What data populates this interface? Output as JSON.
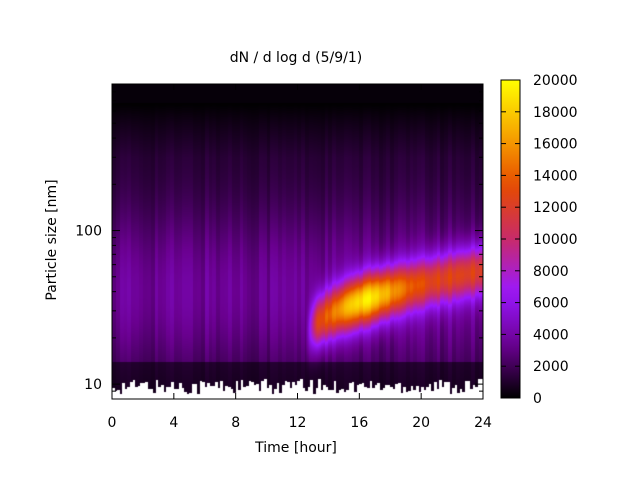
{
  "chart_data": {
    "type": "heatmap",
    "title": "dN / d log d (5/9/1)",
    "xlabel": "Time [hour]",
    "ylabel": "Particle size [nm]",
    "xlim": [
      0,
      24
    ],
    "ylim": [
      8,
      900
    ],
    "y_scale": "log",
    "x_ticks": [
      0,
      4,
      8,
      12,
      16,
      20,
      24
    ],
    "y_ticks": [
      10,
      100
    ],
    "colorbar": {
      "range": [
        0,
        20000
      ],
      "ticks": [
        0,
        2000,
        4000,
        6000,
        8000,
        10000,
        12000,
        14000,
        16000,
        18000,
        20000
      ],
      "colors": [
        "#000000",
        "#6a0090",
        "#9a18ff",
        "#c82b6a",
        "#e64a00",
        "#f7a800",
        "#ffff00"
      ]
    },
    "features": {
      "background_level": 3000,
      "growth_event": {
        "start_hour": 12.5,
        "end_hour": 24,
        "start_diameter_nm": 19,
        "end_diameter_nm": 55,
        "peak_hour": 16.5,
        "peak_diameter_nm": 45,
        "peak_value": 15500
      }
    }
  }
}
